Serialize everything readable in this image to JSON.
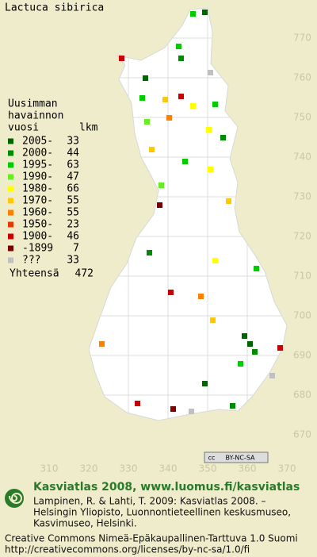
{
  "title": "Lactuca sibirica",
  "legend": {
    "heading": [
      "Uusimman",
      "havainnon"
    ],
    "col_year": "vuosi",
    "col_count": "lkm",
    "rows": [
      {
        "label": "2005-",
        "count": 33,
        "color": "#006400"
      },
      {
        "label": "2000-",
        "count": 44,
        "color": "#008c00"
      },
      {
        "label": "1995-",
        "count": 63,
        "color": "#00cc00"
      },
      {
        "label": "1990-",
        "count": 47,
        "color": "#66ee22"
      },
      {
        "label": "1980-",
        "count": 66,
        "color": "#ffff00"
      },
      {
        "label": "1970-",
        "count": 55,
        "color": "#ffc800"
      },
      {
        "label": "1960-",
        "count": 55,
        "color": "#ff8000"
      },
      {
        "label": "1950-",
        "count": 23,
        "color": "#e83800"
      },
      {
        "label": "1900-",
        "count": 46,
        "color": "#cc0000"
      },
      {
        "label": "-1899",
        "count": 7,
        "color": "#7a0000"
      },
      {
        "label": "???",
        "count": 33,
        "color": "#c0c0c0"
      }
    ],
    "total": {
      "label": "Yhteensä",
      "count": 472
    }
  },
  "axes": {
    "y_labels": [
      770,
      760,
      750,
      740,
      730,
      720,
      710,
      700,
      690,
      680,
      670
    ],
    "x_labels": [
      310,
      320,
      330,
      340,
      350,
      360,
      370
    ]
  },
  "license_badge": {
    "cc": "cc",
    "text": "BY-NC-SA"
  },
  "footer": {
    "headline": "Kasviatlas 2008, www.luomus.fi/kasviatlas",
    "citation": [
      "Lampinen, R. & Lahti, T. 2009: Kasviatlas 2008. –",
      "Helsingin Yliopisto, Luonnontieteellinen keskusmuseo,",
      "Kasvimuseo, Helsinki."
    ],
    "license": [
      "Creative Commons Nimeä-Epäkaupallinen-Tarttuva 1.0 Suomi",
      "http://creativecommons.org/licenses/by-nc-sa/1.0/fi"
    ]
  }
}
